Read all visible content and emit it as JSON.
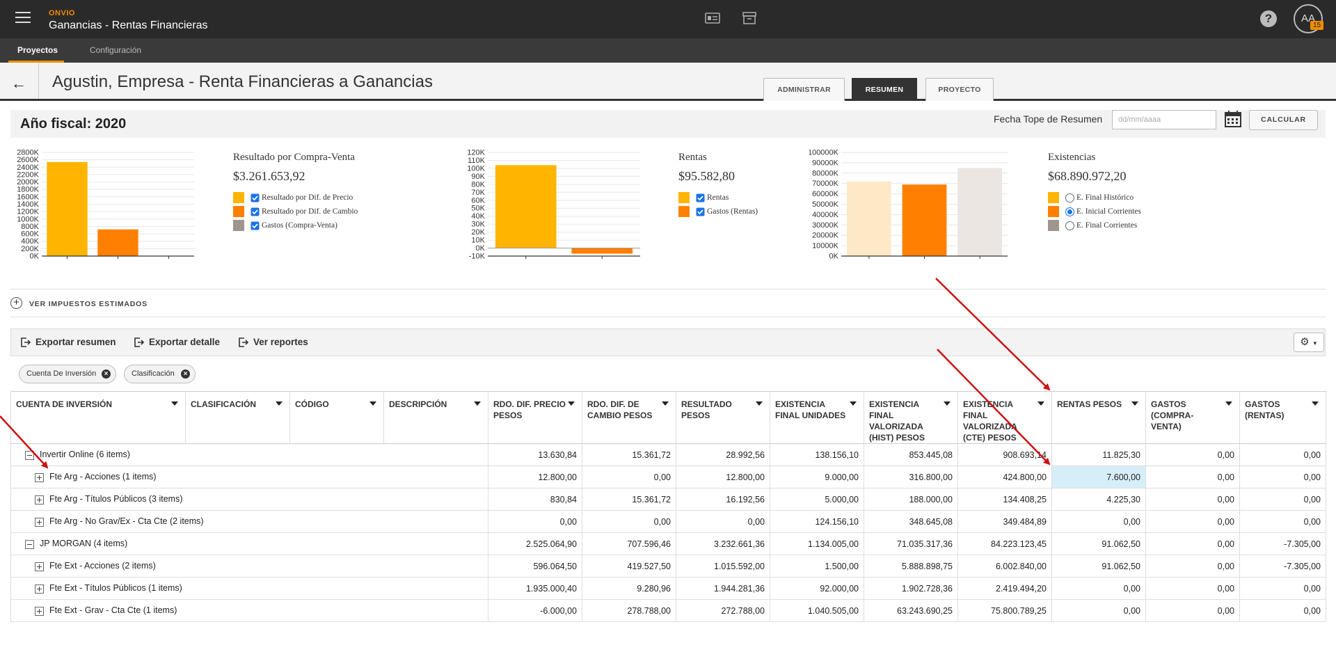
{
  "header": {
    "brand": "ONVIO",
    "app_title": "Ganancias - Rentas Financieras",
    "avatar_initials": "AA",
    "avatar_badge": "15",
    "help_glyph": "?"
  },
  "subnav": {
    "items": [
      {
        "label": "Proyectos",
        "active": true
      },
      {
        "label": "Configuración",
        "active": false
      }
    ]
  },
  "page": {
    "title": "Agustin, Empresa - Renta Financieras a Ganancias",
    "tabs": [
      {
        "label": "ADMINISTRAR",
        "active": false
      },
      {
        "label": "RESUMEN",
        "active": true
      },
      {
        "label": "PROYECTO",
        "active": false
      }
    ]
  },
  "fiscal": {
    "label": "Año fiscal: 2020",
    "fecha_label": "Fecha Tope de Resumen",
    "fecha_placeholder": "dd/mm/aaaa",
    "calc_label": "CALCULAR"
  },
  "summaries": [
    {
      "title": "Resultado por Compra-Venta",
      "value": "$3.261.653,92",
      "legend": [
        {
          "label": "Resultado por Dif. de Precio",
          "color": "#ffb400",
          "control": "checkbox",
          "checked": true
        },
        {
          "label": "Resultado por Dif. de Cambio",
          "color": "#ff8000",
          "control": "checkbox",
          "checked": true
        },
        {
          "label": "Gastos (Compra-Venta)",
          "color": "#a0958c",
          "control": "checkbox",
          "checked": true
        }
      ]
    },
    {
      "title": "Rentas",
      "value": "$95.582,80",
      "legend": [
        {
          "label": "Rentas",
          "color": "#ffb400",
          "control": "checkbox",
          "checked": true
        },
        {
          "label": "Gastos (Rentas)",
          "color": "#ff8000",
          "control": "checkbox",
          "checked": true
        }
      ]
    },
    {
      "title": "Existencias",
      "value": "$68.890.972,20",
      "legend": [
        {
          "label": "E. Final Histórico",
          "color": "#ffb400",
          "control": "radio",
          "checked": false
        },
        {
          "label": "E. Inicial Corrientes",
          "color": "#ff8000",
          "control": "radio",
          "checked": true
        },
        {
          "label": "E. Final Corrientes",
          "color": "#a0958c",
          "control": "radio",
          "checked": false
        }
      ]
    }
  ],
  "chart_data": [
    {
      "type": "bar",
      "ylim": [
        0,
        2800
      ],
      "ticks": [
        "2800K",
        "2600K",
        "2400K",
        "2200K",
        "2000K",
        "1800K",
        "1600K",
        "1400K",
        "1200K",
        "1000K",
        "800K",
        "600K",
        "400K",
        "200K",
        "0K"
      ],
      "tick_values": [
        2800,
        2600,
        2400,
        2200,
        2000,
        1800,
        1600,
        1400,
        1200,
        1000,
        800,
        600,
        400,
        200,
        0
      ],
      "values": [
        2540,
        720,
        0
      ],
      "colors": [
        "#ffb400",
        "#ff8000",
        "#a0958c"
      ]
    },
    {
      "type": "bar",
      "ylim": [
        -10,
        120
      ],
      "ticks": [
        "120K",
        "110K",
        "100K",
        "90K",
        "80K",
        "70K",
        "60K",
        "50K",
        "40K",
        "30K",
        "20K",
        "10K",
        "0K",
        "-10K"
      ],
      "tick_values": [
        120,
        110,
        100,
        90,
        80,
        70,
        60,
        50,
        40,
        30,
        20,
        10,
        0,
        -10
      ],
      "values": [
        104,
        -7
      ],
      "colors": [
        "#ffb400",
        "#ff8000"
      ]
    },
    {
      "type": "bar",
      "ylim": [
        0,
        100000
      ],
      "ticks": [
        "100000K",
        "90000K",
        "80000K",
        "70000K",
        "60000K",
        "50000K",
        "40000K",
        "30000K",
        "20000K",
        "10000K",
        "0K"
      ],
      "tick_values": [
        100000,
        90000,
        80000,
        70000,
        60000,
        50000,
        40000,
        30000,
        20000,
        10000,
        0
      ],
      "values": [
        72000,
        69000,
        85000
      ],
      "colors": [
        "#fde9c6",
        "#ff8000",
        "#ece6e2"
      ]
    }
  ],
  "impuestos": {
    "label": "VER IMPUESTOS ESTIMADOS"
  },
  "toolbar": {
    "export_summary": "Exportar resumen",
    "export_detail": "Exportar detalle",
    "reports": "Ver reportes"
  },
  "chips": [
    "Cuenta De Inversión",
    "Clasificación"
  ],
  "table": {
    "columns": [
      "CUENTA DE INVERSIÓN",
      "CLASIFICACIÓN",
      "CÓDIGO",
      "DESCRIPCIÓN",
      "RDO. DIF. PRECIO PESOS",
      "RDO. DIF. DE CAMBIO PESOS",
      "RESULTADO PESOS",
      "EXISTENCIA FINAL UNIDADES",
      "EXISTENCIA FINAL VALORIZADA (HIST) PESOS",
      "EXISTENCIA FINAL VALORIZADA (CTE) PESOS",
      "RENTAS PESOS",
      "GASTOS (COMPRA-VENTA)",
      "GASTOS (RENTAS)"
    ],
    "rows": [
      {
        "label": "Invertir Online (6 items)",
        "level": 0,
        "expanded": true,
        "values": [
          "13.630,84",
          "15.361,72",
          "28.992,56",
          "138.156,10",
          "853.445,08",
          "908.693,14",
          "11.825,30",
          "0,00",
          "0,00"
        ]
      },
      {
        "label": "Fte Arg - Acciones (1 items)",
        "level": 1,
        "expanded": false,
        "values": [
          "12.800,00",
          "0,00",
          "12.800,00",
          "9.000,00",
          "316.800,00",
          "424.800,00",
          "7.600,00",
          "0,00",
          "0,00"
        ],
        "highlight": 6
      },
      {
        "label": "Fte Arg - Títulos Públicos (3 items)",
        "level": 1,
        "expanded": false,
        "values": [
          "830,84",
          "15.361,72",
          "16.192,56",
          "5.000,00",
          "188.000,00",
          "134.408,25",
          "4.225,30",
          "0,00",
          "0,00"
        ]
      },
      {
        "label": "Fte Arg - No Grav/Ex - Cta Cte (2 items)",
        "level": 1,
        "expanded": false,
        "values": [
          "0,00",
          "0,00",
          "0,00",
          "124.156,10",
          "348.645,08",
          "349.484,89",
          "0,00",
          "0,00",
          "0,00"
        ]
      },
      {
        "label": "JP MORGAN (4 items)",
        "level": 0,
        "expanded": true,
        "values": [
          "2.525.064,90",
          "707.596,46",
          "3.232.661,36",
          "1.134.005,00",
          "71.035.317,36",
          "84.223.123,45",
          "91.062,50",
          "0,00",
          "-7.305,00"
        ]
      },
      {
        "label": "Fte Ext - Acciones (2 items)",
        "level": 1,
        "expanded": false,
        "values": [
          "596.064,50",
          "419.527,50",
          "1.015.592,00",
          "1.500,00",
          "5.888.898,75",
          "6.002.840,00",
          "91.062,50",
          "0,00",
          "-7.305,00"
        ]
      },
      {
        "label": "Fte Ext - Títulos Públicos (1 items)",
        "level": 1,
        "expanded": false,
        "values": [
          "1.935.000,40",
          "9.280,96",
          "1.944.281,36",
          "92.000,00",
          "1.902.728,36",
          "2.419.494,20",
          "0,00",
          "0,00",
          "0,00"
        ]
      },
      {
        "label": "Fte Ext - Grav - Cta Cte (1 items)",
        "level": 1,
        "expanded": false,
        "values": [
          "-6.000,00",
          "278.788,00",
          "272.788,00",
          "1.040.505,00",
          "63.243.690,25",
          "75.800.789,25",
          "0,00",
          "0,00",
          "0,00"
        ]
      }
    ]
  },
  "colors": {
    "accent": "#f08c00",
    "topbar": "#2a2a2a",
    "annotation_arrow": "#cc1111",
    "highlight_cell": "#d6eef8"
  }
}
